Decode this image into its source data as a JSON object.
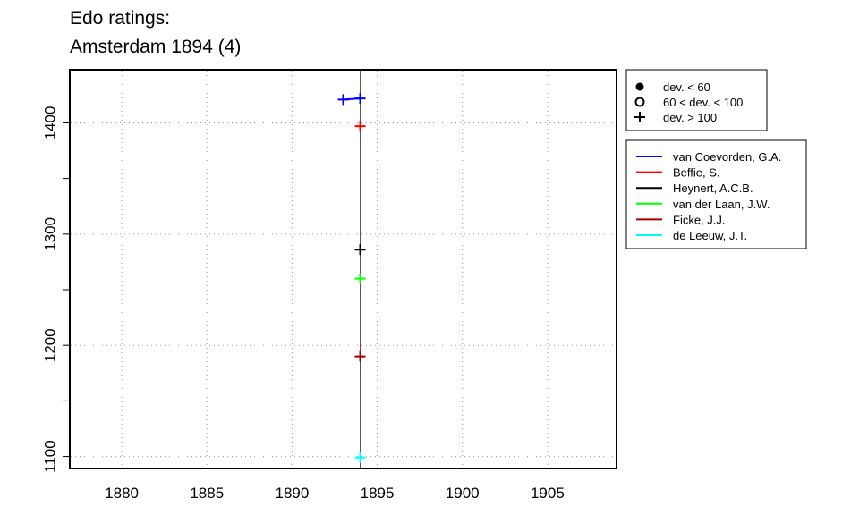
{
  "title_lines": [
    "Edo ratings:",
    "Amsterdam 1894 (4)"
  ],
  "chart_data": {
    "type": "scatter",
    "title": "Edo ratings:\nAmsterdam 1894 (4)",
    "xlabel": "",
    "ylabel": "",
    "xlim": [
      1877,
      1909
    ],
    "ylim": [
      1090,
      1447
    ],
    "x_ticks": [
      1880,
      1885,
      1890,
      1895,
      1900,
      1905
    ],
    "y_ticks": [
      1100,
      1200,
      1300,
      1400
    ],
    "grid": true,
    "reference_line_x": 1894,
    "marker_legend": [
      {
        "symbol": "filled-circle",
        "label": "dev. < 60"
      },
      {
        "symbol": "open-circle",
        "label": "60 < dev. < 100"
      },
      {
        "symbol": "plus",
        "label": "dev. > 100"
      }
    ],
    "series": [
      {
        "name": "van Coevorden, G.A.",
        "color": "#0000ff",
        "points": [
          {
            "x": 1893,
            "y": 1421
          },
          {
            "x": 1894,
            "y": 1422
          }
        ]
      },
      {
        "name": "Beffie, S.",
        "color": "#ff0000",
        "points": [
          {
            "x": 1894,
            "y": 1397
          }
        ]
      },
      {
        "name": "Heynert, A.C.B.",
        "color": "#000000",
        "points": [
          {
            "x": 1894,
            "y": 1286
          }
        ]
      },
      {
        "name": "van der Laan, J.W.",
        "color": "#00ff00",
        "points": [
          {
            "x": 1894,
            "y": 1260
          }
        ]
      },
      {
        "name": "Ficke, J.J.",
        "color": "#a50000",
        "points": [
          {
            "x": 1894,
            "y": 1190
          }
        ]
      },
      {
        "name": "de Leeuw, J.T.",
        "color": "#00ffff",
        "points": [
          {
            "x": 1894,
            "y": 1099
          }
        ]
      }
    ]
  }
}
